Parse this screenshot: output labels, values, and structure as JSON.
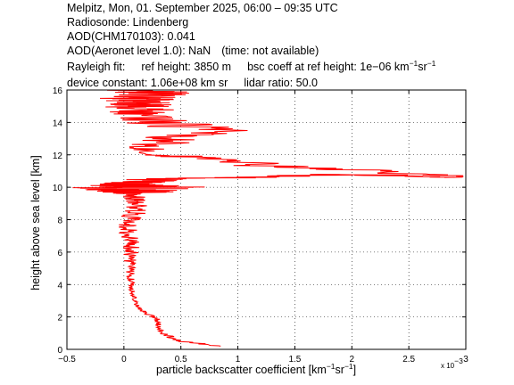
{
  "header": {
    "line1": "Melpitz, Mon, 01. September 2025, 06:00 – 09:35 UTC",
    "line2": "Radiosonde: Lindenberg",
    "line3": "AOD(CHM170103): 0.041",
    "line4a": "AOD(Aeronet level 1.0): NaN",
    "line4b": "(time: not available)",
    "line5a": "Rayleigh fit:",
    "line5b": "ref height: 3850 m",
    "line5c": "bsc coeff at ref height: 1e−06 km",
    "line5c_exp1": "−1",
    "line5c_mid": "sr",
    "line5c_exp2": "−1",
    "line6a": "device constant: 1.06e+08 km sr",
    "line6b": "lidar ratio: 50.0"
  },
  "chart_data": {
    "type": "line",
    "ylabel": "height above sea level [km]",
    "xlabel": "particle backscatter coefficient [km",
    "xlabel_exp1": "−1",
    "xlabel_mid": "sr",
    "xlabel_exp2": "−1",
    "xlabel_end": "]",
    "x_multiplier": "x 10",
    "x_multiplier_exp": "−3",
    "xlim": [
      -0.5,
      3.0
    ],
    "ylim": [
      0,
      16
    ],
    "xticks": [
      "−0.5",
      "0",
      "0.5",
      "1",
      "1.5",
      "2",
      "2.5",
      "3"
    ],
    "yticks": [
      "0",
      "2",
      "4",
      "6",
      "8",
      "10",
      "12",
      "14",
      "16"
    ],
    "grid": true,
    "series": [
      {
        "color": "#ff0000",
        "x": [
          0.85,
          0.5,
          0.33,
          0.3,
          0.3,
          0.26,
          0.2,
          0.12,
          0.1,
          0.08,
          0.07,
          0.06,
          0.05,
          0.05,
          0.06,
          0.07,
          0.05,
          0.04,
          0.05,
          0.09,
          0.11,
          0.1,
          0.09,
          0.1,
          0.12,
          0.1,
          0.1,
          0.12,
          0.1,
          0.09,
          0.1,
          0.3,
          1.0,
          2.0,
          3.0,
          2.2,
          1.3,
          0.7,
          0.3,
          0.25,
          0.4,
          0.8,
          0.3,
          0.15,
          0.2,
          0.12,
          0.15,
          0.1,
          0.2,
          0.3,
          0.1
        ],
        "y": [
          0.2,
          0.5,
          1.0,
          1.5,
          1.8,
          2.0,
          2.2,
          2.6,
          3.0,
          3.5,
          4.0,
          4.5,
          5.0,
          5.5,
          6.0,
          6.5,
          7.0,
          7.5,
          8.0,
          8.5,
          9.0,
          9.2,
          9.4,
          9.6,
          9.7,
          9.8,
          9.9,
          10.0,
          10.1,
          10.2,
          10.3,
          10.5,
          10.6,
          10.8,
          10.6,
          11.0,
          11.3,
          11.8,
          12.0,
          12.5,
          13.0,
          13.5,
          14.0,
          14.5,
          14.8,
          15.0,
          15.2,
          15.4,
          15.6,
          15.8,
          16.0
        ],
        "spread": [
          0.05,
          0.06,
          0.03,
          0.03,
          0.03,
          0.03,
          0.03,
          0.02,
          0.02,
          0.03,
          0.03,
          0.04,
          0.05,
          0.06,
          0.07,
          0.08,
          0.09,
          0.09,
          0.1,
          0.12,
          0.1,
          0.1,
          0.1,
          0.15,
          0.3,
          0.4,
          0.5,
          0.8,
          0.5,
          0.3,
          0.25,
          0.4,
          0.3,
          0.3,
          0.2,
          0.3,
          0.3,
          0.25,
          0.2,
          0.25,
          0.3,
          0.35,
          0.35,
          0.3,
          0.3,
          0.3,
          0.3,
          0.35,
          0.4,
          0.4,
          0.4
        ]
      }
    ]
  }
}
